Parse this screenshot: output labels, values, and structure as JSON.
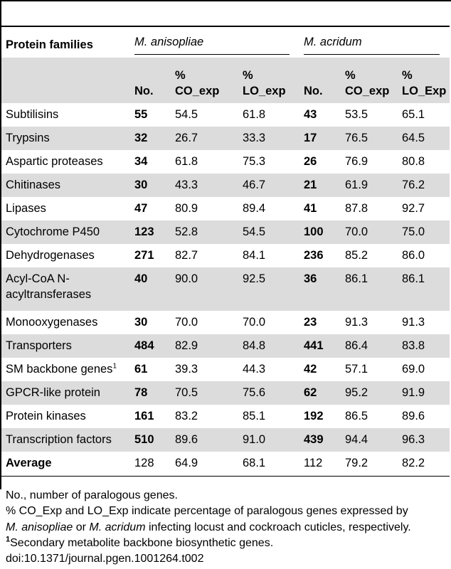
{
  "table": {
    "row_header": "Protein families",
    "groups": [
      "M. anisopliae",
      "M. acridum"
    ],
    "columns": [
      [
        "No.",
        [
          "%",
          "CO_exp"
        ],
        [
          "%",
          "LO_exp"
        ]
      ],
      [
        "No.",
        [
          "%",
          "CO_exp"
        ],
        [
          "%",
          "LO_Exp"
        ]
      ]
    ],
    "rows": [
      {
        "name": "Subtilisins",
        "a_no": "55",
        "a_co": "54.5",
        "a_lo": "61.8",
        "b_no": "43",
        "b_co": "53.5",
        "b_lo": "65.1"
      },
      {
        "name": "Trypsins",
        "a_no": "32",
        "a_co": "26.7",
        "a_lo": "33.3",
        "b_no": "17",
        "b_co": "76.5",
        "b_lo": "64.5"
      },
      {
        "name": "Aspartic proteases",
        "a_no": "34",
        "a_co": "61.8",
        "a_lo": "75.3",
        "b_no": "26",
        "b_co": "76.9",
        "b_lo": "80.8"
      },
      {
        "name": "Chitinases",
        "a_no": "30",
        "a_co": "43.3",
        "a_lo": "46.7",
        "b_no": "21",
        "b_co": "61.9",
        "b_lo": "76.2"
      },
      {
        "name": "Lipases",
        "a_no": "47",
        "a_co": "80.9",
        "a_lo": "89.4",
        "b_no": "41",
        "b_co": "87.8",
        "b_lo": "92.7"
      },
      {
        "name": "Cytochrome P450",
        "a_no": "123",
        "a_co": "52.8",
        "a_lo": "54.5",
        "b_no": "100",
        "b_co": "70.0",
        "b_lo": "75.0"
      },
      {
        "name": "Dehydrogenases",
        "a_no": "271",
        "a_co": "82.7",
        "a_lo": "84.1",
        "b_no": "236",
        "b_co": "85.2",
        "b_lo": "86.0"
      },
      {
        "name": "Acyl-CoA N-acyltransferases",
        "a_no": "40",
        "a_co": "90.0",
        "a_lo": "92.5",
        "b_no": "36",
        "b_co": "86.1",
        "b_lo": "86.1"
      },
      {
        "name": "Monooxygenases",
        "a_no": "30",
        "a_co": "70.0",
        "a_lo": "70.0",
        "b_no": "23",
        "b_co": "91.3",
        "b_lo": "91.3"
      },
      {
        "name": "Transporters",
        "a_no": "484",
        "a_co": "82.9",
        "a_lo": "84.8",
        "b_no": "441",
        "b_co": "86.4",
        "b_lo": "83.8"
      },
      {
        "name": "SM backbone genes",
        "sup": "1",
        "a_no": "61",
        "a_co": "39.3",
        "a_lo": "44.3",
        "b_no": "42",
        "b_co": "57.1",
        "b_lo": "69.0"
      },
      {
        "name": "GPCR-like protein",
        "a_no": "78",
        "a_co": "70.5",
        "a_lo": "75.6",
        "b_no": "62",
        "b_co": "95.2",
        "b_lo": "91.9"
      },
      {
        "name": "Protein kinases",
        "a_no": "161",
        "a_co": "83.2",
        "a_lo": "85.1",
        "b_no": "192",
        "b_co": "86.5",
        "b_lo": "89.6"
      },
      {
        "name": "Transcription factors",
        "a_no": "510",
        "a_co": "89.6",
        "a_lo": "91.0",
        "b_no": "439",
        "b_co": "94.4",
        "b_lo": "96.3"
      },
      {
        "name": "Average",
        "a_no": "128",
        "a_co": "64.9",
        "a_lo": "68.1",
        "b_no": "112",
        "b_co": "79.2",
        "b_lo": "82.2"
      }
    ]
  },
  "notes": {
    "line1": "No., number of paralogous genes.",
    "line2": "% CO_Exp and LO_Exp indicate percentage of paralogous genes expressed by",
    "line3_sp1": "M. anisopliae",
    "line3_mid": " or ",
    "line3_sp2": "M. acridum",
    "line3_end": " infecting locust and cockroach cuticles, respectively.",
    "fn_mark": "1",
    "fn_text": "Secondary metabolite backbone biosynthetic genes.",
    "doi": "doi:10.1371/journal.pgen.1001264.t002"
  }
}
